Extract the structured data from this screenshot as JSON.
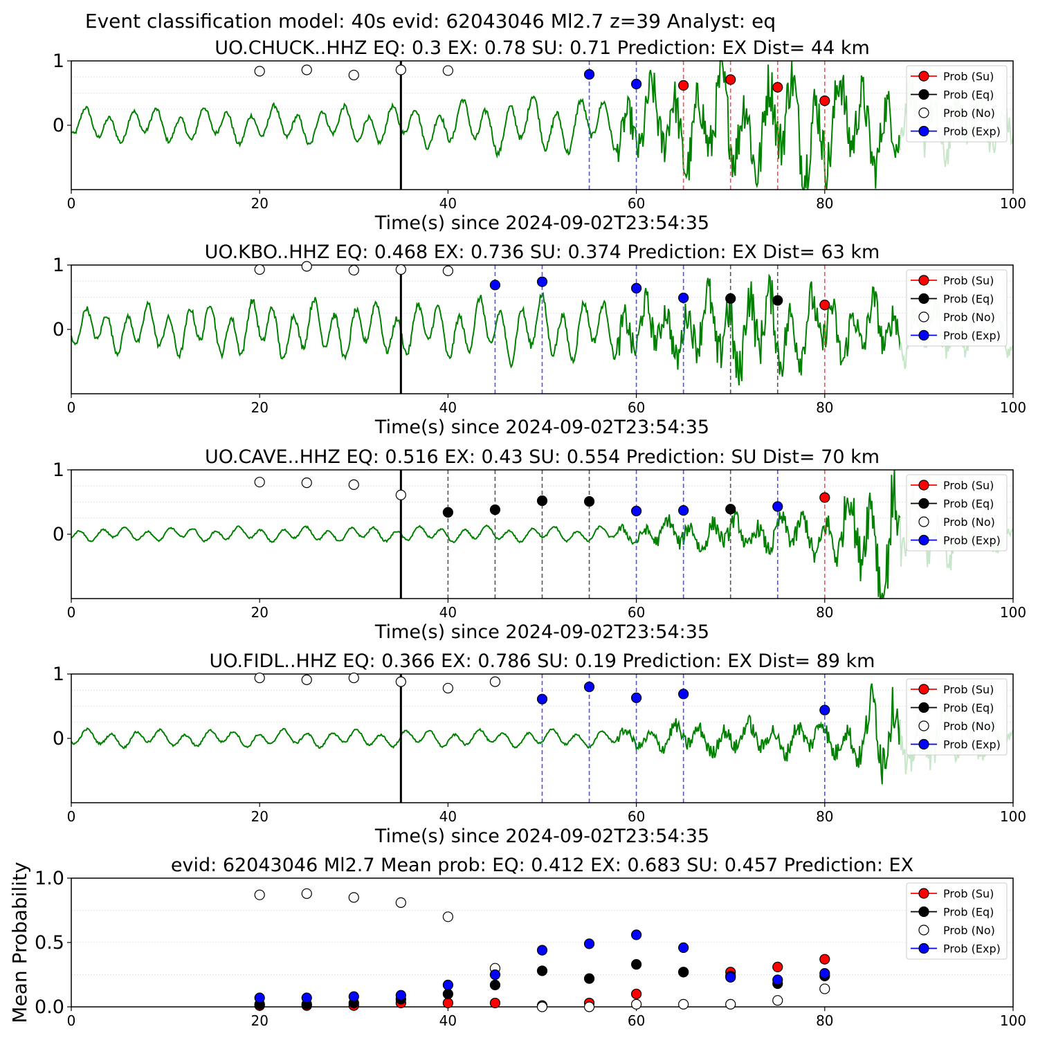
{
  "figure_title": "Event classification model: 40s evid: 62043046 Ml2.7 z=39 Analyst: eq",
  "colors": {
    "waveform": "#008000",
    "waveform_tail": "#c8e6c9",
    "su": "#ff0000",
    "eq": "#000000",
    "no": "#ffffff",
    "exp": "#0000ff",
    "su_line": "#ff4d4d",
    "eq_line": "#555555",
    "exp_line": "#4d4dff"
  },
  "legend": [
    "Prob (Su)",
    "Prob (Eq)",
    "Prob (No)",
    "Prob (Exp)"
  ],
  "chart_data": [
    {
      "type": "scatter",
      "title": "UO.CHUCK..HHZ   EQ: 0.3  EX: 0.78  SU: 0.71   Prediction: EX    Dist= 44 km",
      "xlabel": "Time(s) since 2024-09-02T23:54:35",
      "ylabel": "",
      "xlim": [
        0,
        100
      ],
      "ylim": [
        -1,
        1
      ],
      "xticks": [
        0,
        20,
        40,
        60,
        80,
        100
      ],
      "yticks": [
        0,
        1
      ],
      "pick_time": 35,
      "noise_times": [
        20,
        25,
        30,
        35,
        40
      ],
      "noise_probs": [
        0.84,
        0.86,
        0.78,
        0.86,
        0.85
      ],
      "classified": [
        {
          "t": 55,
          "class": "exp",
          "prob": 0.79
        },
        {
          "t": 60,
          "class": "exp",
          "prob": 0.64
        },
        {
          "t": 65,
          "class": "su",
          "prob": 0.62
        },
        {
          "t": 70,
          "class": "su",
          "prob": 0.71
        },
        {
          "t": 75,
          "class": "su",
          "prob": 0.59
        },
        {
          "t": 80,
          "class": "su",
          "prob": 0.38
        }
      ],
      "wave_profile": [
        [
          0,
          0.25
        ],
        [
          35,
          0.3
        ],
        [
          50,
          0.45
        ],
        [
          58,
          0.4
        ],
        [
          62,
          0.6
        ],
        [
          70,
          0.7
        ],
        [
          78,
          0.8
        ],
        [
          90,
          0.5
        ],
        [
          100,
          0.35
        ]
      ],
      "wave_period": 2.5,
      "tail_start": 88
    },
    {
      "type": "scatter",
      "title": "UO.KBO..HHZ   EQ: 0.468  EX: 0.736  SU: 0.374   Prediction: EX    Dist= 63 km",
      "xlabel": "Time(s) since 2024-09-02T23:54:35",
      "ylabel": "",
      "xlim": [
        0,
        100
      ],
      "ylim": [
        -1,
        1
      ],
      "xticks": [
        0,
        20,
        40,
        60,
        80,
        100
      ],
      "yticks": [
        0,
        1
      ],
      "pick_time": 35,
      "noise_times": [
        20,
        25,
        30,
        35,
        40
      ],
      "noise_probs": [
        0.93,
        0.98,
        0.92,
        0.93,
        0.91
      ],
      "classified": [
        {
          "t": 45,
          "class": "exp",
          "prob": 0.69
        },
        {
          "t": 50,
          "class": "exp",
          "prob": 0.74
        },
        {
          "t": 60,
          "class": "exp",
          "prob": 0.64
        },
        {
          "t": 65,
          "class": "exp",
          "prob": 0.49
        },
        {
          "t": 70,
          "class": "eq",
          "prob": 0.48
        },
        {
          "t": 75,
          "class": "eq",
          "prob": 0.45
        },
        {
          "t": 80,
          "class": "su",
          "prob": 0.38
        }
      ],
      "wave_profile": [
        [
          0,
          0.3
        ],
        [
          20,
          0.45
        ],
        [
          35,
          0.4
        ],
        [
          50,
          0.5
        ],
        [
          62,
          0.4
        ],
        [
          66,
          0.45
        ],
        [
          70,
          0.7
        ],
        [
          78,
          0.5
        ],
        [
          100,
          0.3
        ]
      ],
      "wave_period": 2.2,
      "tail_start": 88
    },
    {
      "type": "scatter",
      "title": "UO.CAVE..HHZ   EQ: 0.516  EX: 0.43  SU: 0.554   Prediction: SU    Dist= 70 km",
      "xlabel": "Time(s) since 2024-09-02T23:54:35",
      "ylabel": "",
      "xlim": [
        0,
        100
      ],
      "ylim": [
        -1,
        1
      ],
      "xticks": [
        0,
        20,
        40,
        60,
        80,
        100
      ],
      "yticks": [
        0,
        1
      ],
      "pick_time": 35,
      "noise_times": [
        20,
        25,
        30,
        35
      ],
      "noise_probs": [
        0.81,
        0.8,
        0.77,
        0.61
      ],
      "classified": [
        {
          "t": 40,
          "class": "eq",
          "prob": 0.34
        },
        {
          "t": 45,
          "class": "eq",
          "prob": 0.38
        },
        {
          "t": 50,
          "class": "eq",
          "prob": 0.52
        },
        {
          "t": 55,
          "class": "eq",
          "prob": 0.51
        },
        {
          "t": 60,
          "class": "exp",
          "prob": 0.36
        },
        {
          "t": 65,
          "class": "exp",
          "prob": 0.37
        },
        {
          "t": 70,
          "class": "eq",
          "prob": 0.39
        },
        {
          "t": 75,
          "class": "exp",
          "prob": 0.43
        },
        {
          "t": 80,
          "class": "su",
          "prob": 0.57
        }
      ],
      "wave_profile": [
        [
          0,
          0.1
        ],
        [
          60,
          0.12
        ],
        [
          64,
          0.22
        ],
        [
          75,
          0.25
        ],
        [
          80,
          0.35
        ],
        [
          84,
          0.7
        ],
        [
          87,
          1.0
        ],
        [
          90,
          0.45
        ],
        [
          100,
          0.25
        ]
      ],
      "wave_period": 2.4,
      "tail_start": 88
    },
    {
      "type": "scatter",
      "title": "UO.FIDL..HHZ   EQ: 0.366  EX: 0.786  SU: 0.19   Prediction: EX    Dist= 89 km",
      "xlabel": "Time(s) since 2024-09-02T23:54:35",
      "ylabel": "",
      "xlim": [
        0,
        100
      ],
      "ylim": [
        -1,
        1
      ],
      "xticks": [
        0,
        20,
        40,
        60,
        80,
        100
      ],
      "yticks": [
        0,
        1
      ],
      "pick_time": 35,
      "noise_times": [
        20,
        25,
        30,
        35,
        40,
        45
      ],
      "noise_probs": [
        0.94,
        0.91,
        0.94,
        0.88,
        0.78,
        0.88
      ],
      "classified": [
        {
          "t": 50,
          "class": "exp",
          "prob": 0.61
        },
        {
          "t": 55,
          "class": "exp",
          "prob": 0.8
        },
        {
          "t": 60,
          "class": "exp",
          "prob": 0.63
        },
        {
          "t": 65,
          "class": "exp",
          "prob": 0.69
        },
        {
          "t": 80,
          "class": "exp",
          "prob": 0.44
        }
      ],
      "wave_profile": [
        [
          0,
          0.13
        ],
        [
          60,
          0.13
        ],
        [
          64,
          0.2
        ],
        [
          80,
          0.25
        ],
        [
          84,
          0.35
        ],
        [
          86,
          0.85
        ],
        [
          88,
          0.5
        ],
        [
          100,
          0.2
        ]
      ],
      "wave_period": 2.6,
      "tail_start": 88
    },
    {
      "type": "scatter",
      "title": "evid: 62043046  Ml2.7   Mean prob:   EQ: 0.412  EX: 0.683  SU: 0.457   Prediction: EX",
      "xlabel": "",
      "ylabel": "Mean Probability",
      "xlim": [
        0,
        100
      ],
      "ylim": [
        0,
        1
      ],
      "xticks": [
        0,
        20,
        40,
        60,
        80,
        100
      ],
      "yticks": [
        0.0,
        0.5,
        1.0
      ],
      "ytick_labels": [
        "0.0",
        "0.5",
        "1.0"
      ],
      "x": [
        20,
        25,
        30,
        35,
        40,
        45,
        50,
        55,
        60,
        65,
        70,
        75,
        80
      ],
      "series": [
        {
          "class": "su",
          "values": [
            0.01,
            0.01,
            0.01,
            0.03,
            0.03,
            0.03,
            0.01,
            0.03,
            0.1,
            0.27,
            0.27,
            0.31,
            0.37
          ]
        },
        {
          "class": "eq",
          "values": [
            0.02,
            0.02,
            0.03,
            0.06,
            0.1,
            0.17,
            0.28,
            0.22,
            0.33,
            0.27,
            0.24,
            0.18,
            0.24
          ]
        },
        {
          "class": "no",
          "values": [
            0.87,
            0.88,
            0.85,
            0.81,
            0.7,
            0.3,
            0.0,
            0.0,
            0.02,
            0.02,
            0.02,
            0.05,
            0.14
          ]
        },
        {
          "class": "exp",
          "values": [
            0.07,
            0.07,
            0.08,
            0.09,
            0.17,
            0.25,
            0.44,
            0.49,
            0.56,
            0.46,
            0.23,
            0.21,
            0.26
          ]
        }
      ]
    }
  ]
}
